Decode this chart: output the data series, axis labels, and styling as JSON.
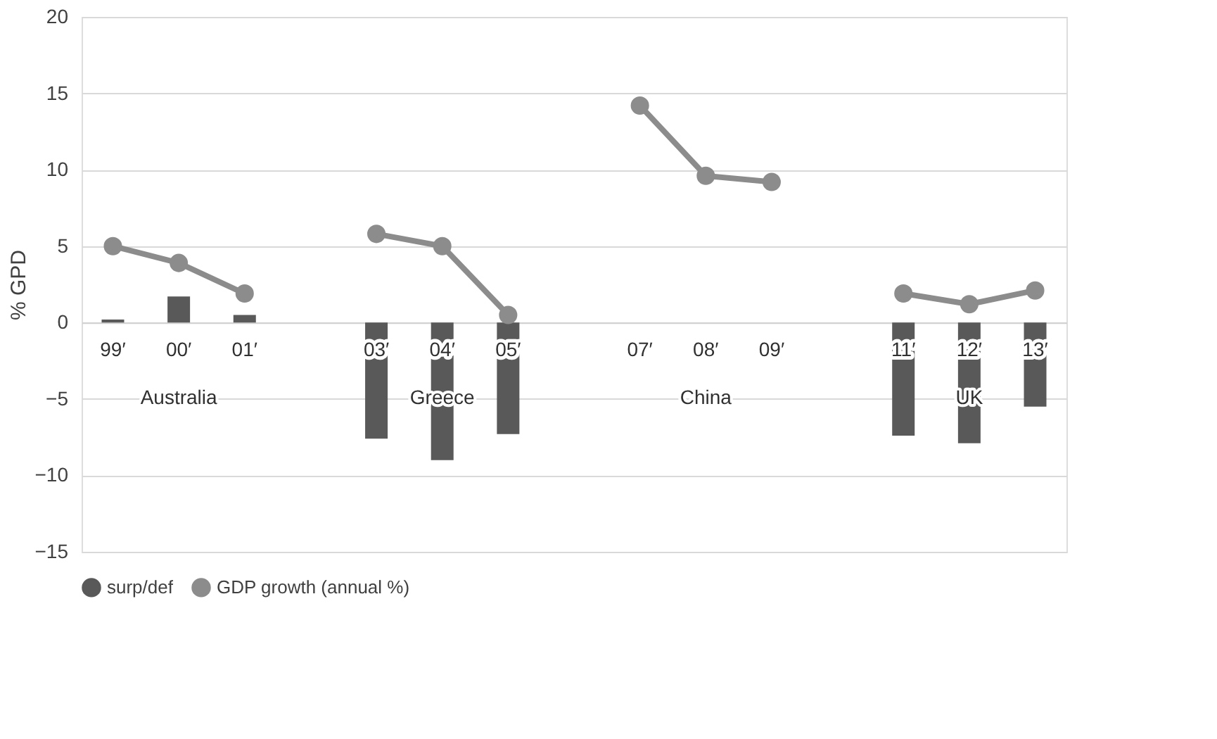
{
  "chart_data": {
    "type": "bar",
    "ylabel": "% GPD",
    "categories": [
      "99′",
      "00′",
      "01′",
      null,
      "03′",
      "04′",
      "05′",
      null,
      "07′",
      "08′",
      "09′",
      null,
      "11′",
      "12′",
      "13′"
    ],
    "series": [
      {
        "name": "surp/def",
        "color": "#595959",
        "values": [
          0.2,
          1.7,
          0.5,
          null,
          -7.6,
          -9.0,
          -7.3,
          null,
          null,
          null,
          null,
          null,
          -7.4,
          -7.9,
          -5.5
        ]
      },
      {
        "name": "GDP growth (annual %)",
        "type": "line",
        "color": "#8c8c8c",
        "marker": "circle",
        "values": [
          5.0,
          3.9,
          1.9,
          null,
          5.8,
          5.0,
          0.5,
          null,
          14.2,
          9.6,
          9.2,
          null,
          1.9,
          1.2,
          2.1
        ]
      }
    ],
    "annotations": [
      "Australia",
      "Greece",
      "China",
      "UK"
    ],
    "ylim": [
      -15,
      20
    ],
    "yticks": [
      -15,
      -10,
      -5,
      0,
      5,
      10,
      15,
      20
    ],
    "grid": "y",
    "legend": "bottom"
  }
}
